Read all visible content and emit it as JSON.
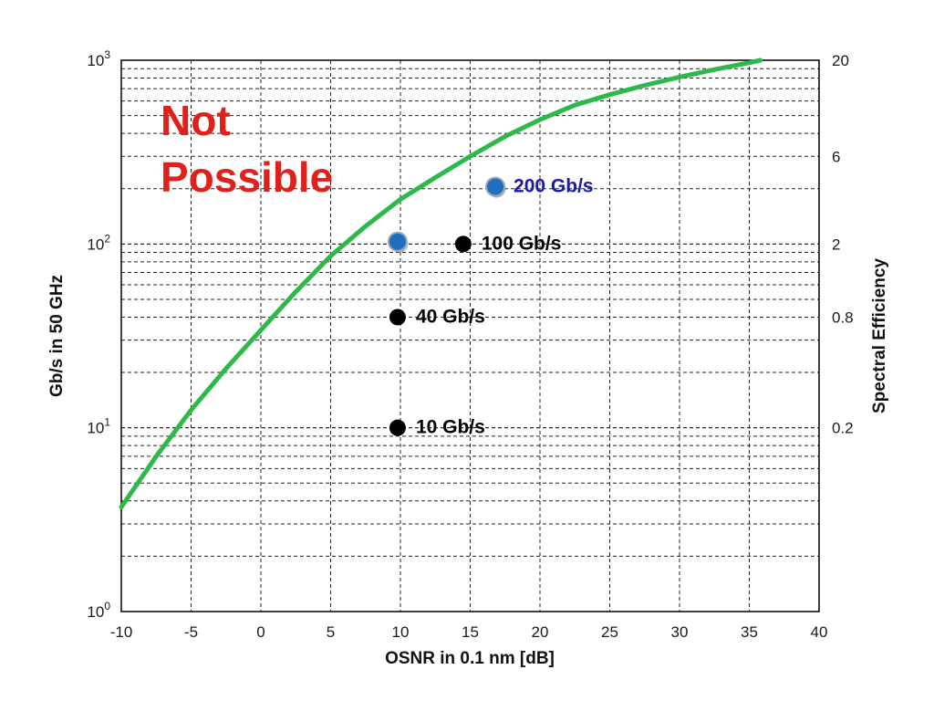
{
  "chart_data": {
    "type": "line",
    "title": "",
    "xlabel": "OSNR in 0.1 nm [dB]",
    "ylabel": "Gb/s in 50 GHz",
    "ylabel_right": "Spectral Efficiency",
    "xlim": [
      -10,
      40
    ],
    "ylim": [
      1,
      1000
    ],
    "yscale": "log",
    "grid": true,
    "x_ticks": [
      "-10",
      "-5",
      "0",
      "5",
      "10",
      "15",
      "20",
      "25",
      "30",
      "35",
      "40"
    ],
    "y_ticks": [
      {
        "base": "10",
        "exp": "0",
        "value": 1
      },
      {
        "base": "10",
        "exp": "1",
        "value": 10
      },
      {
        "base": "10",
        "exp": "2",
        "value": 100
      },
      {
        "base": "10",
        "exp": "3",
        "value": 1000
      }
    ],
    "y2_ticks": [
      {
        "label": "0.2",
        "at": 10
      },
      {
        "label": "0.8",
        "at": 40
      },
      {
        "label": "2",
        "at": 100
      },
      {
        "label": "6",
        "at": 300
      },
      {
        "label": "20",
        "at": 1000
      }
    ],
    "colors": {
      "curve": "#2db84a",
      "black_point": "#000000",
      "blue_point": "#1f6fbf",
      "blue_label": "#1a1aa6",
      "region_text": "#e0201b"
    },
    "region_label": [
      "Not",
      "Possible"
    ],
    "series": [
      {
        "x": [
          -10,
          -7.5,
          -5,
          -2.5,
          0,
          2.5,
          5,
          7.5,
          10,
          12.5,
          15,
          17.5,
          20,
          22.5,
          25,
          27.5,
          30,
          32.5,
          35,
          35.8
        ],
        "y": [
          3.7,
          7,
          12.5,
          21,
          34,
          55,
          86,
          125,
          175,
          230,
          300,
          385,
          475,
          570,
          650,
          730,
          810,
          890,
          970,
          1000
        ]
      }
    ],
    "points": [
      {
        "x": 9.8,
        "y": 10,
        "label": "10 Gb/s",
        "color": "black"
      },
      {
        "x": 9.8,
        "y": 40,
        "label": "40 Gb/s",
        "color": "black"
      },
      {
        "x": 14.5,
        "y": 100,
        "label": "100 Gb/s",
        "color": "black"
      },
      {
        "x": 9.8,
        "y": 103,
        "label": "",
        "color": "blue"
      },
      {
        "x": 16.8,
        "y": 205,
        "label": "200 Gb/s",
        "color": "blue"
      }
    ]
  }
}
